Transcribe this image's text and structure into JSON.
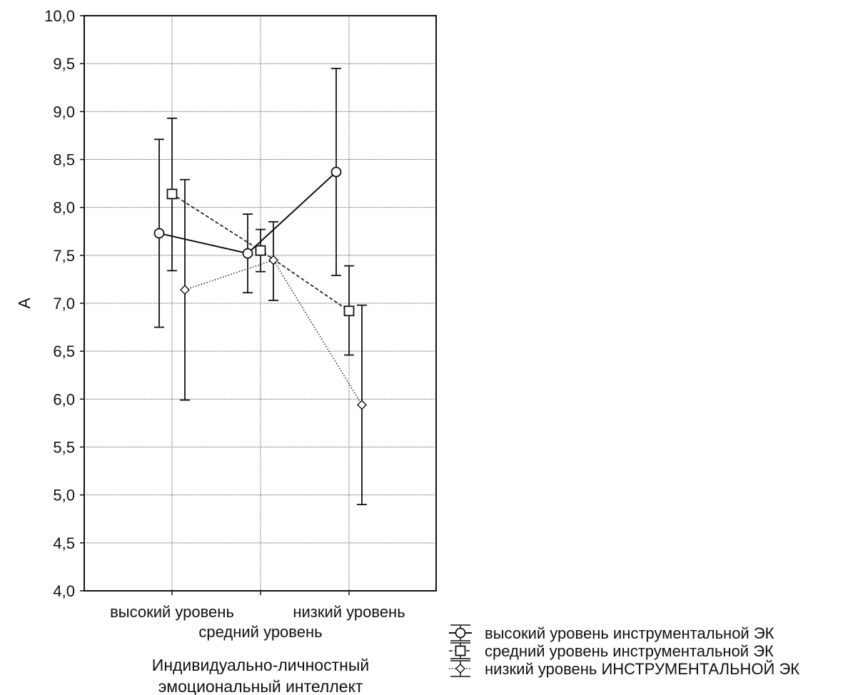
{
  "chart_data": {
    "type": "line",
    "title": "",
    "xlabel": "Индивидуально-личностный эмоциональный интеллект",
    "xlabel_lines": [
      "Индивидуально-личностный",
      "эмоциональный интеллект"
    ],
    "ylabel": "А",
    "ylim": [
      4.0,
      10.0
    ],
    "yticks": [
      "10,0",
      "9,5",
      "9,0",
      "8,5",
      "8,0",
      "7,5",
      "7,0",
      "6,5",
      "6,0",
      "5,5",
      "5,0",
      "4,5",
      "4,0"
    ],
    "yticks_values": [
      10.0,
      9.5,
      9.0,
      8.5,
      8.0,
      7.5,
      7.0,
      6.5,
      6.0,
      5.5,
      5.0,
      4.5,
      4.0
    ],
    "categories": [
      "высокий уровень",
      "средний уровень",
      "низкий уровень"
    ],
    "grid": true,
    "legend_position": "bottom-right",
    "series": [
      {
        "name": "высокий уровень инструментальной ЭК",
        "marker": "circle",
        "line_style": "solid",
        "values": [
          7.73,
          7.52,
          8.37
        ],
        "lower": [
          6.75,
          7.11,
          7.29
        ],
        "upper": [
          8.71,
          7.93,
          9.45
        ]
      },
      {
        "name": "средний уровень инструментальной ЭК",
        "marker": "square",
        "line_style": "dashed",
        "values": [
          8.14,
          7.55,
          6.92
        ],
        "lower": [
          7.34,
          7.33,
          6.46
        ],
        "upper": [
          8.93,
          7.77,
          7.39
        ]
      },
      {
        "name": "низкий уровень ИНСТРУМЕНТАЛЬНОЙ ЭК",
        "marker": "diamond",
        "line_style": "dotted",
        "values": [
          7.14,
          7.45,
          5.94
        ],
        "lower": [
          5.99,
          7.03,
          4.9
        ],
        "upper": [
          8.29,
          7.85,
          6.98
        ]
      }
    ]
  },
  "colors": {
    "ink": "#111111",
    "grid": "#555555",
    "background": "#ffffff"
  }
}
